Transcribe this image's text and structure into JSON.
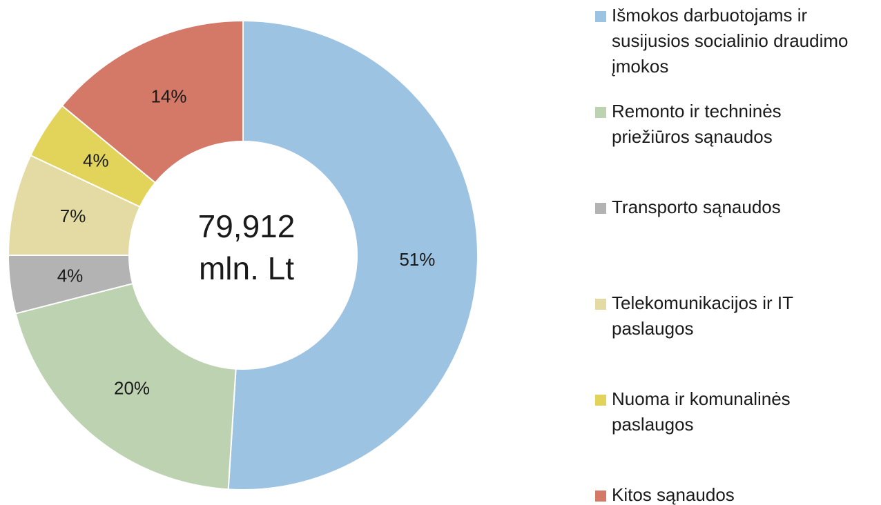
{
  "chart_data": {
    "type": "donut",
    "center_text": [
      "79,912",
      "mln. Lt"
    ],
    "categories": [
      "Išmokos darbuotojams ir susijusios socialinio draudimo įmokos",
      "Remonto ir techninės priežiūros sąnaudos",
      "Transporto sąnaudos",
      "Telekomunikacijos ir IT paslaugos",
      "Nuoma ir komunalinės paslaugos",
      "Kitos sąnaudos"
    ],
    "values": [
      51,
      20,
      4,
      7,
      4,
      14
    ],
    "value_labels": [
      "51%",
      "20%",
      "4%",
      "7%",
      "4%",
      "14%"
    ],
    "colors": [
      "#9dc3e2",
      "#bcd2b0",
      "#b3b3b3",
      "#e3dba3",
      "#e2d45a",
      "#d47868"
    ],
    "legend": "right"
  }
}
